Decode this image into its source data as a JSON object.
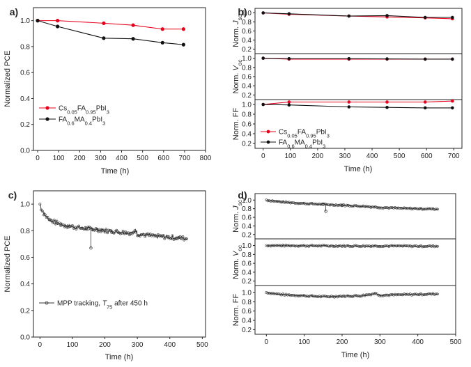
{
  "chart_data": [
    {
      "panel": "a)",
      "type": "line",
      "xlabel": "Time (h)",
      "ylabel": "Normalized PCE",
      "xlim": [
        -20,
        800
      ],
      "ylim": [
        0.0,
        1.1
      ],
      "xticks": [
        "0",
        "100",
        "200",
        "300",
        "400",
        "500",
        "600",
        "700",
        "800"
      ],
      "yticks": [
        "0.0",
        "0.2",
        "0.4",
        "0.6",
        "0.8",
        "1.0"
      ],
      "legend_position": "lower-left",
      "series": [
        {
          "name": "Cs0.05FA0.95PbI3",
          "color": "#e8001c",
          "x": [
            0,
            95,
            315,
            455,
            595,
            695
          ],
          "y": [
            1.0,
            1.0,
            0.98,
            0.965,
            0.935,
            0.935
          ]
        },
        {
          "name": "FA0.6MA0.4PbI3",
          "color": "#111111",
          "x": [
            0,
            95,
            315,
            455,
            595,
            695
          ],
          "y": [
            1.0,
            0.955,
            0.865,
            0.86,
            0.83,
            0.815
          ]
        }
      ]
    },
    {
      "panel": "b)",
      "type": "line",
      "xlabel": "Time (h)",
      "xlim": [
        -30,
        730
      ],
      "xticks": [
        "0",
        "100",
        "200",
        "300",
        "400",
        "500",
        "600",
        "700"
      ],
      "yticks": [
        "0.2",
        "0.4",
        "0.6",
        "0.8",
        "1.0"
      ],
      "legend_position": "bottom-left",
      "subplots": [
        {
          "ylabel": "Norm. Jsc",
          "ylim": [
            0.1,
            1.1
          ],
          "series": [
            {
              "name": "Cs0.05FA0.95PbI3",
              "color": "#e8001c",
              "x": [
                0,
                95,
                315,
                455,
                595,
                695
              ],
              "y": [
                1.0,
                0.97,
                0.93,
                0.91,
                0.89,
                0.87
              ]
            },
            {
              "name": "FA0.6MA0.4PbI3",
              "color": "#111111",
              "x": [
                0,
                95,
                315,
                455,
                595,
                695
              ],
              "y": [
                1.0,
                0.98,
                0.93,
                0.94,
                0.9,
                0.9
              ]
            }
          ]
        },
        {
          "ylabel": "Norm. Voc",
          "ylim": [
            0.1,
            1.1
          ],
          "series": [
            {
              "name": "Cs0.05FA0.95PbI3",
              "color": "#e8001c",
              "x": [
                0,
                95,
                315,
                455,
                595,
                695
              ],
              "y": [
                1.0,
                0.98,
                0.98,
                0.98,
                0.98,
                0.98
              ]
            },
            {
              "name": "FA0.6MA0.4PbI3",
              "color": "#111111",
              "x": [
                0,
                95,
                315,
                455,
                595,
                695
              ],
              "y": [
                1.0,
                0.99,
                0.99,
                0.985,
                0.98,
                0.98
              ]
            }
          ]
        },
        {
          "ylabel": "Norm. FF",
          "ylim": [
            0.1,
            1.1
          ],
          "series": [
            {
              "name": "Cs0.05FA0.95PbI3",
              "color": "#e8001c",
              "x": [
                0,
                95,
                315,
                455,
                595,
                695
              ],
              "y": [
                1.0,
                1.05,
                1.05,
                1.05,
                1.05,
                1.07
              ]
            },
            {
              "name": "FA0.6MA0.4PbI3",
              "color": "#111111",
              "x": [
                0,
                95,
                315,
                455,
                595,
                695
              ],
              "y": [
                1.0,
                0.99,
                0.95,
                0.94,
                0.93,
                0.93
              ]
            }
          ]
        }
      ]
    },
    {
      "panel": "c)",
      "type": "scatter",
      "xlabel": "Time (h)",
      "ylabel": "Normalized PCE",
      "xlim": [
        -20,
        510
      ],
      "ylim": [
        0.0,
        1.1
      ],
      "xticks": [
        "0",
        "100",
        "200",
        "300",
        "400",
        "500"
      ],
      "yticks": [
        "0.0",
        "0.2",
        "0.4",
        "0.6",
        "0.8",
        "1.0"
      ],
      "legend_position": "lower-left",
      "legend_label": "MPP tracking, T75 after 450 h",
      "series": [
        {
          "name": "MPP tracking, T75 after 450 h",
          "color": "#333333",
          "x": [
            0,
            5,
            15,
            30,
            50,
            75,
            100,
            125,
            150,
            157,
            160,
            175,
            200,
            250,
            290,
            293,
            300,
            350,
            400,
            430,
            455
          ],
          "y": [
            1.0,
            0.96,
            0.92,
            0.88,
            0.86,
            0.84,
            0.83,
            0.82,
            0.815,
            0.67,
            0.81,
            0.81,
            0.8,
            0.79,
            0.78,
            0.82,
            0.775,
            0.76,
            0.75,
            0.745,
            0.74
          ]
        }
      ]
    },
    {
      "panel": "d)",
      "type": "scatter",
      "xlabel": "Time (h)",
      "xlim": [
        -30,
        500
      ],
      "xticks": [
        "0",
        "100",
        "200",
        "300",
        "400",
        "500"
      ],
      "yticks": [
        "0.2",
        "0.4",
        "0.6",
        "0.8",
        "1.0"
      ],
      "subplots": [
        {
          "ylabel": "Norm. Jsc",
          "ylim": [
            0.1,
            1.15
          ],
          "series": [
            {
              "name": "Jsc",
              "color": "#333333",
              "x": [
                0,
                25,
                50,
                100,
                150,
                157,
                200,
                250,
                300,
                350,
                400,
                455
              ],
              "y": [
                1.0,
                0.97,
                0.95,
                0.92,
                0.9,
                0.74,
                0.88,
                0.86,
                0.83,
                0.81,
                0.8,
                0.79
              ]
            }
          ]
        },
        {
          "ylabel": "Norm. Voc",
          "ylim": [
            0.1,
            1.15
          ],
          "series": [
            {
              "name": "Voc",
              "color": "#333333",
              "x": [
                0,
                100,
                200,
                300,
                400,
                455
              ],
              "y": [
                1.0,
                0.995,
                0.99,
                0.99,
                0.985,
                0.985
              ]
            }
          ]
        },
        {
          "ylabel": "Norm. FF",
          "ylim": [
            0.1,
            1.15
          ],
          "series": [
            {
              "name": "FF",
              "color": "#333333",
              "x": [
                0,
                25,
                50,
                100,
                150,
                200,
                250,
                290,
                300,
                350,
                400,
                455
              ],
              "y": [
                1.0,
                0.97,
                0.95,
                0.93,
                0.91,
                0.92,
                0.93,
                0.98,
                0.94,
                0.95,
                0.96,
                0.97
              ]
            }
          ]
        }
      ]
    }
  ]
}
